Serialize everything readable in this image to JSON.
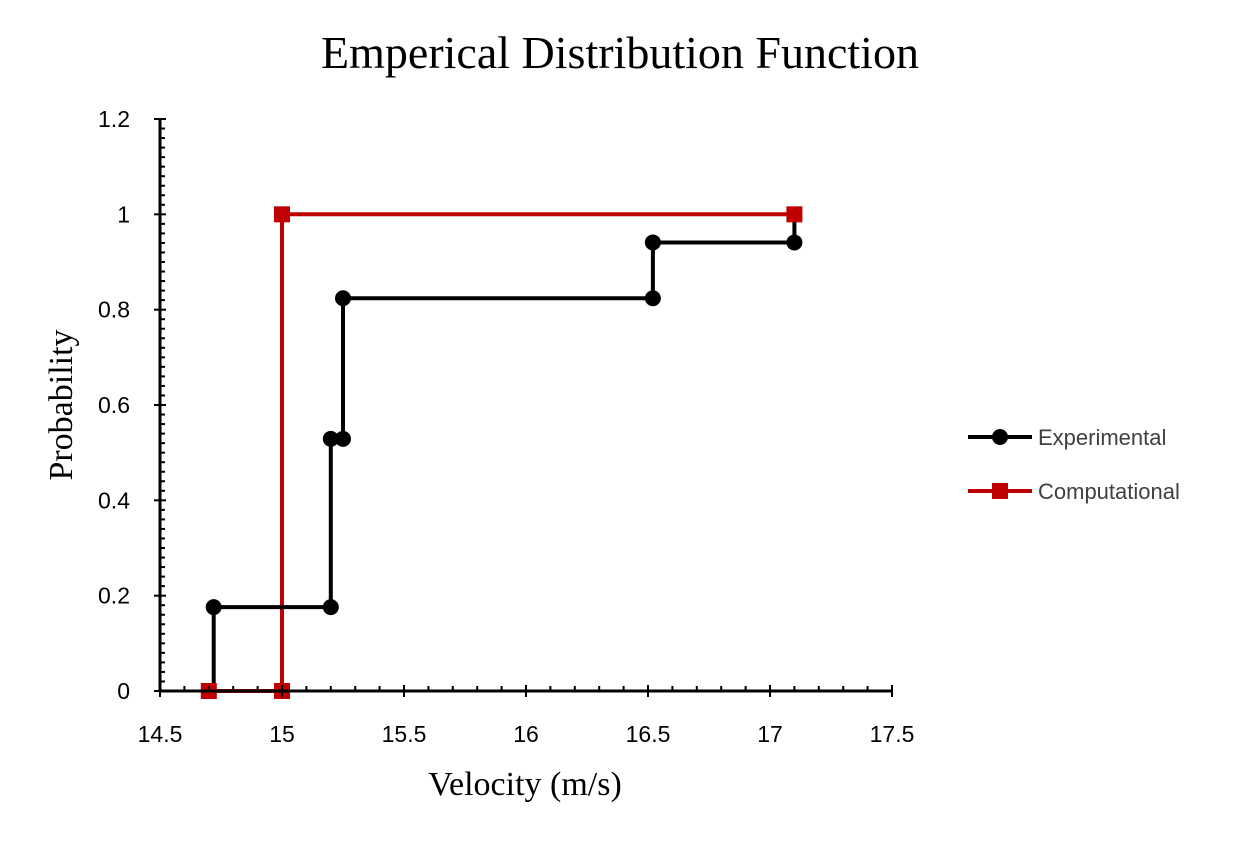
{
  "chart_data": {
    "type": "line",
    "step": true,
    "title": "Emperical Distribution Function",
    "xlabel": "Velocity (m/s)",
    "ylabel": "Probability",
    "xlim": [
      14.5,
      17.5
    ],
    "ylim": [
      0,
      1.2
    ],
    "x_ticks": [
      "14.5",
      "15",
      "15.5",
      "16",
      "16.5",
      "17",
      "17.5"
    ],
    "y_ticks": [
      "0",
      "0.2",
      "0.4",
      "0.6",
      "0.8",
      "1",
      "1.2"
    ],
    "x_minor_divisions": 5,
    "y_minor_divisions": 10,
    "grid": false,
    "legend_position": "right",
    "series": [
      {
        "name": "Experimental",
        "color": "#000000",
        "marker": "circle",
        "points": [
          {
            "x": 14.72,
            "y": 0
          },
          {
            "x": 14.72,
            "y": 0.176
          },
          {
            "x": 15.2,
            "y": 0.176
          },
          {
            "x": 15.2,
            "y": 0.529
          },
          {
            "x": 15.25,
            "y": 0.529
          },
          {
            "x": 15.25,
            "y": 0.824
          },
          {
            "x": 16.52,
            "y": 0.824
          },
          {
            "x": 16.52,
            "y": 0.941
          },
          {
            "x": 17.1,
            "y": 0.941
          },
          {
            "x": 17.1,
            "y": 1.0
          }
        ],
        "marked": [
          false,
          true,
          true,
          true,
          true,
          true,
          true,
          true,
          true,
          false
        ]
      },
      {
        "name": "Computational",
        "color": "#c00000",
        "marker": "square",
        "points": [
          {
            "x": 14.7,
            "y": 0
          },
          {
            "x": 15.0,
            "y": 0
          },
          {
            "x": 15.0,
            "y": 1.0
          },
          {
            "x": 17.1,
            "y": 1.0
          }
        ],
        "marked": [
          true,
          true,
          true,
          true
        ]
      }
    ]
  }
}
